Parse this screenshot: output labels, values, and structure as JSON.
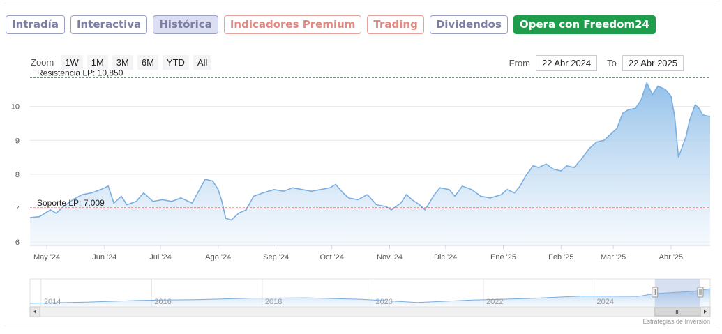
{
  "tabs": [
    {
      "label": "Intradía",
      "style": "normal"
    },
    {
      "label": "Interactiva",
      "style": "normal"
    },
    {
      "label": "Histórica",
      "style": "active"
    },
    {
      "label": "Indicadores Premium",
      "style": "premium"
    },
    {
      "label": "Trading",
      "style": "premium"
    },
    {
      "label": "Dividendos",
      "style": "normal"
    },
    {
      "label": "Opera con Freedom24",
      "style": "cta"
    }
  ],
  "zoom": {
    "label": "Zoom",
    "buttons": [
      "1W",
      "1M",
      "3M",
      "6M",
      "YTD",
      "All"
    ]
  },
  "range": {
    "from_label": "From",
    "from_value": "22 Abr 2024",
    "to_label": "To",
    "to_value": "22 Abr 2025"
  },
  "credits": "Estrategias de Inversión",
  "colors": {
    "line": "#7aaee0",
    "area_top": "#8dbde8",
    "area_bottom": "#eef5fc",
    "resistance": "#2e7d32",
    "support": "#c62828",
    "cta": "#1f9d4d"
  },
  "chart_data": {
    "type": "area",
    "title": "",
    "xlabel": "",
    "ylabel": "",
    "ylim": [
      5.9,
      11.0
    ],
    "y_ticks": [
      6,
      7,
      8,
      9,
      10
    ],
    "x_range": [
      "2024-04-22",
      "2025-04-22"
    ],
    "x_ticks": [
      {
        "date": "2024-05-01",
        "label": "May '24"
      },
      {
        "date": "2024-06-01",
        "label": "Jun '24"
      },
      {
        "date": "2024-07-01",
        "label": "Jul '24"
      },
      {
        "date": "2024-08-01",
        "label": "Ago '24"
      },
      {
        "date": "2024-09-01",
        "label": "Sep '24"
      },
      {
        "date": "2024-10-01",
        "label": "Oct '24"
      },
      {
        "date": "2024-11-01",
        "label": "Nov '24"
      },
      {
        "date": "2024-12-01",
        "label": "Dic '24"
      },
      {
        "date": "2025-01-01",
        "label": "Ene '25"
      },
      {
        "date": "2025-02-01",
        "label": "Feb '25"
      },
      {
        "date": "2025-03-01",
        "label": "Mar '25"
      },
      {
        "date": "2025-04-01",
        "label": "Abr '25"
      }
    ],
    "grid": true,
    "legend": "none",
    "series": [
      {
        "points": [
          [
            "2024-04-22",
            6.72
          ],
          [
            "2024-04-27",
            6.75
          ],
          [
            "2024-05-03",
            6.95
          ],
          [
            "2024-05-06",
            6.85
          ],
          [
            "2024-05-10",
            7.05
          ],
          [
            "2024-05-15",
            7.25
          ],
          [
            "2024-05-20",
            7.4
          ],
          [
            "2024-05-25",
            7.45
          ],
          [
            "2024-05-30",
            7.55
          ],
          [
            "2024-06-03",
            7.65
          ],
          [
            "2024-06-06",
            7.15
          ],
          [
            "2024-06-10",
            7.35
          ],
          [
            "2024-06-13",
            7.1
          ],
          [
            "2024-06-18",
            7.2
          ],
          [
            "2024-06-22",
            7.45
          ],
          [
            "2024-06-27",
            7.2
          ],
          [
            "2024-07-02",
            7.25
          ],
          [
            "2024-07-07",
            7.2
          ],
          [
            "2024-07-12",
            7.3
          ],
          [
            "2024-07-18",
            7.15
          ],
          [
            "2024-07-22",
            7.55
          ],
          [
            "2024-07-25",
            7.85
          ],
          [
            "2024-07-29",
            7.8
          ],
          [
            "2024-08-01",
            7.55
          ],
          [
            "2024-08-03",
            7.2
          ],
          [
            "2024-08-05",
            6.7
          ],
          [
            "2024-08-08",
            6.65
          ],
          [
            "2024-08-12",
            6.85
          ],
          [
            "2024-08-16",
            6.95
          ],
          [
            "2024-08-20",
            7.35
          ],
          [
            "2024-08-25",
            7.45
          ],
          [
            "2024-08-31",
            7.55
          ],
          [
            "2024-09-05",
            7.5
          ],
          [
            "2024-09-10",
            7.6
          ],
          [
            "2024-09-15",
            7.55
          ],
          [
            "2024-09-20",
            7.5
          ],
          [
            "2024-09-25",
            7.55
          ],
          [
            "2024-09-30",
            7.6
          ],
          [
            "2024-10-03",
            7.7
          ],
          [
            "2024-10-07",
            7.45
          ],
          [
            "2024-10-10",
            7.3
          ],
          [
            "2024-10-15",
            7.25
          ],
          [
            "2024-10-20",
            7.4
          ],
          [
            "2024-10-25",
            7.1
          ],
          [
            "2024-10-30",
            7.05
          ],
          [
            "2024-11-02",
            6.95
          ],
          [
            "2024-11-07",
            7.15
          ],
          [
            "2024-11-10",
            7.4
          ],
          [
            "2024-11-13",
            7.25
          ],
          [
            "2024-11-17",
            7.1
          ],
          [
            "2024-11-20",
            6.95
          ],
          [
            "2024-11-25",
            7.4
          ],
          [
            "2024-11-28",
            7.6
          ],
          [
            "2024-12-03",
            7.55
          ],
          [
            "2024-12-06",
            7.35
          ],
          [
            "2024-12-10",
            7.65
          ],
          [
            "2024-12-15",
            7.55
          ],
          [
            "2024-12-20",
            7.35
          ],
          [
            "2024-12-25",
            7.3
          ],
          [
            "2024-12-31",
            7.4
          ],
          [
            "2025-01-03",
            7.55
          ],
          [
            "2025-01-07",
            7.45
          ],
          [
            "2025-01-10",
            7.65
          ],
          [
            "2025-01-13",
            7.95
          ],
          [
            "2025-01-17",
            8.25
          ],
          [
            "2025-01-20",
            8.2
          ],
          [
            "2025-01-24",
            8.3
          ],
          [
            "2025-01-28",
            8.15
          ],
          [
            "2025-02-01",
            8.1
          ],
          [
            "2025-02-04",
            8.25
          ],
          [
            "2025-02-08",
            8.2
          ],
          [
            "2025-02-12",
            8.45
          ],
          [
            "2025-02-16",
            8.75
          ],
          [
            "2025-02-20",
            8.95
          ],
          [
            "2025-02-24",
            9.0
          ],
          [
            "2025-02-28",
            9.2
          ],
          [
            "2025-03-03",
            9.35
          ],
          [
            "2025-03-06",
            9.8
          ],
          [
            "2025-03-09",
            9.9
          ],
          [
            "2025-03-13",
            9.95
          ],
          [
            "2025-03-16",
            10.2
          ],
          [
            "2025-03-19",
            10.7
          ],
          [
            "2025-03-22",
            10.35
          ],
          [
            "2025-03-25",
            10.6
          ],
          [
            "2025-03-29",
            10.5
          ],
          [
            "2025-04-01",
            10.3
          ],
          [
            "2025-04-03",
            9.7
          ],
          [
            "2025-04-05",
            8.5
          ],
          [
            "2025-04-07",
            8.8
          ],
          [
            "2025-04-09",
            9.1
          ],
          [
            "2025-04-11",
            9.6
          ],
          [
            "2025-04-14",
            10.05
          ],
          [
            "2025-04-16",
            9.95
          ],
          [
            "2025-04-18",
            9.75
          ],
          [
            "2025-04-22",
            9.7
          ]
        ]
      }
    ],
    "annotations": [
      {
        "label": "Resistencia LP: 10,850",
        "value": 10.85,
        "style": "dashed"
      },
      {
        "label": "Soporte LP: 7,009",
        "value": 7.009,
        "style": "dashed"
      }
    ],
    "navigator": {
      "x_labels": [
        "2014",
        "2016",
        "2018",
        "2020",
        "2022",
        "2024"
      ],
      "points": [
        [
          2013.0,
          0.12
        ],
        [
          2014.0,
          0.18
        ],
        [
          2015.0,
          0.28
        ],
        [
          2016.0,
          0.32
        ],
        [
          2017.0,
          0.4
        ],
        [
          2018.0,
          0.42
        ],
        [
          2019.0,
          0.34
        ],
        [
          2020.0,
          0.16
        ],
        [
          2021.0,
          0.3
        ],
        [
          2022.0,
          0.38
        ],
        [
          2023.0,
          0.52
        ],
        [
          2024.0,
          0.5
        ],
        [
          2024.3,
          0.65
        ],
        [
          2025.0,
          0.78
        ],
        [
          2025.3,
          0.92
        ]
      ],
      "selected_range": [
        2024.3,
        2025.3
      ]
    }
  }
}
